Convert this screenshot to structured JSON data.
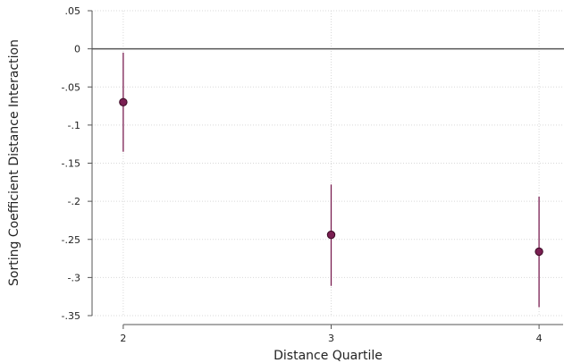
{
  "chart_data": {
    "type": "scatter",
    "title": "",
    "xlabel": "Distance Quartile",
    "ylabel": "Sorting Coefficient Distance Interaction",
    "x_ticks": [
      2,
      3,
      4
    ],
    "x_tick_labels": [
      "2",
      "3",
      "4"
    ],
    "y_ticks": [
      0.05,
      0,
      -0.05,
      -0.1,
      -0.15,
      -0.2,
      -0.25,
      -0.3,
      -0.35
    ],
    "y_tick_labels": [
      ".05",
      "0",
      "-.05",
      "-.1",
      "-.15",
      "-.2",
      "-.25",
      "-.3",
      "-.35"
    ],
    "ylim": [
      -0.35,
      0.05
    ],
    "xlim": [
      1.85,
      4.12
    ],
    "grid": true,
    "reference_line_y": 0,
    "points": [
      {
        "x": 2,
        "y": -0.07,
        "ci_low": -0.135,
        "ci_high": -0.005
      },
      {
        "x": 3,
        "y": -0.244,
        "ci_low": -0.311,
        "ci_high": -0.178
      },
      {
        "x": 4,
        "y": -0.266,
        "ci_low": -0.339,
        "ci_high": -0.194
      }
    ],
    "colors": {
      "marker_fill": "#7a1f52",
      "marker_edge": "#3a0a24",
      "ci_line": "#7a1f52",
      "grid": "#d9d9d9",
      "reference_line": "#555555",
      "axis": "#555555"
    }
  }
}
